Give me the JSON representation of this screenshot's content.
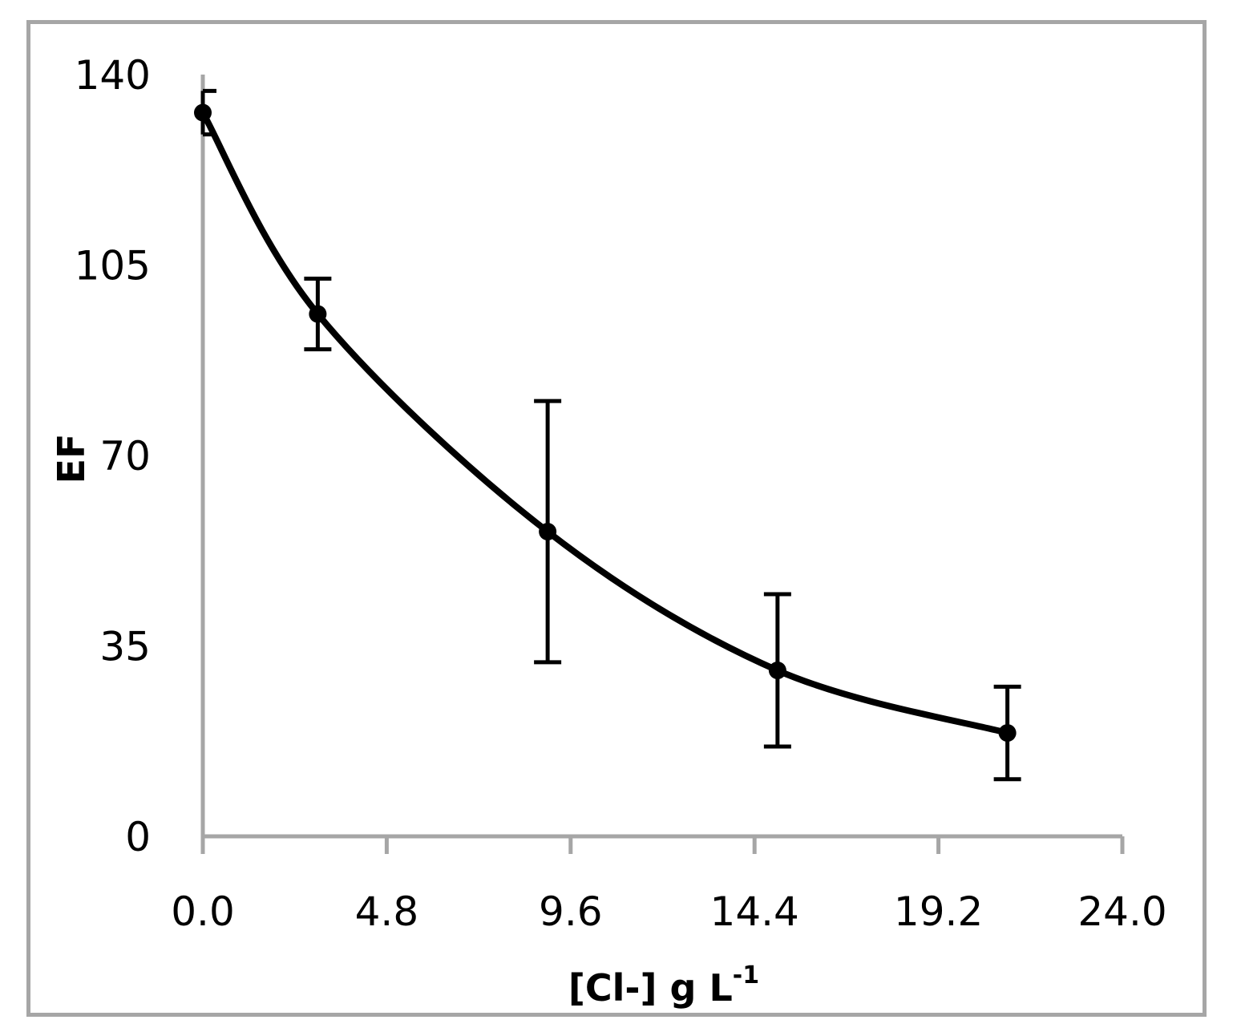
{
  "chart_data": {
    "type": "line",
    "title": "",
    "xlabel": "[Cl-] g L",
    "xlabel_superscript": "-1",
    "ylabel": "EF",
    "xlim": [
      0,
      24.0
    ],
    "ylim": [
      0,
      140
    ],
    "x_ticks": [
      "0.0",
      "4.8",
      "9.6",
      "14.4",
      "19.2",
      "24.0"
    ],
    "y_ticks": [
      "0",
      "35",
      "70",
      "105",
      "140"
    ],
    "grid": false,
    "legend": "none",
    "smoothed": true,
    "series": [
      {
        "name": "EF",
        "x": [
          0.0,
          3.0,
          9.0,
          15.0,
          21.0
        ],
        "y": [
          133,
          96,
          56,
          30.5,
          19
        ],
        "error": [
          4,
          6.5,
          24,
          14,
          8.5
        ]
      }
    ]
  },
  "colors": {
    "line": "#000000",
    "axis": "#a6a6a6",
    "frame": "#a6a6a6"
  }
}
